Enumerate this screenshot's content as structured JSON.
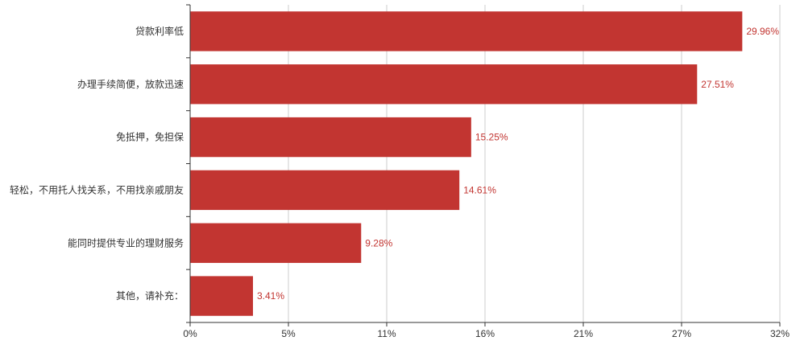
{
  "chart_data": {
    "type": "bar",
    "orientation": "horizontal",
    "categories": [
      "贷款利率低",
      "办理手续简便，放款迅速",
      "免抵押，免担保",
      "轻松，不用托人找关系，不用找亲戚朋友",
      "能同时提供专业的理财服务",
      "其他，请补充："
    ],
    "values": [
      29.96,
      27.51,
      15.25,
      14.61,
      9.28,
      3.41
    ],
    "value_labels": [
      "29.96%",
      "27.51%",
      "15.25%",
      "14.61%",
      "9.28%",
      "3.41%"
    ],
    "x_ticks": [
      "0%",
      "5%",
      "11%",
      "16%",
      "21%",
      "27%",
      "32%"
    ],
    "xlim": [
      0,
      32
    ],
    "grid": true,
    "bar_color": "#c23531",
    "label_color": "#c23531",
    "axis_color": "#333333",
    "grid_color": "#cccccc"
  }
}
